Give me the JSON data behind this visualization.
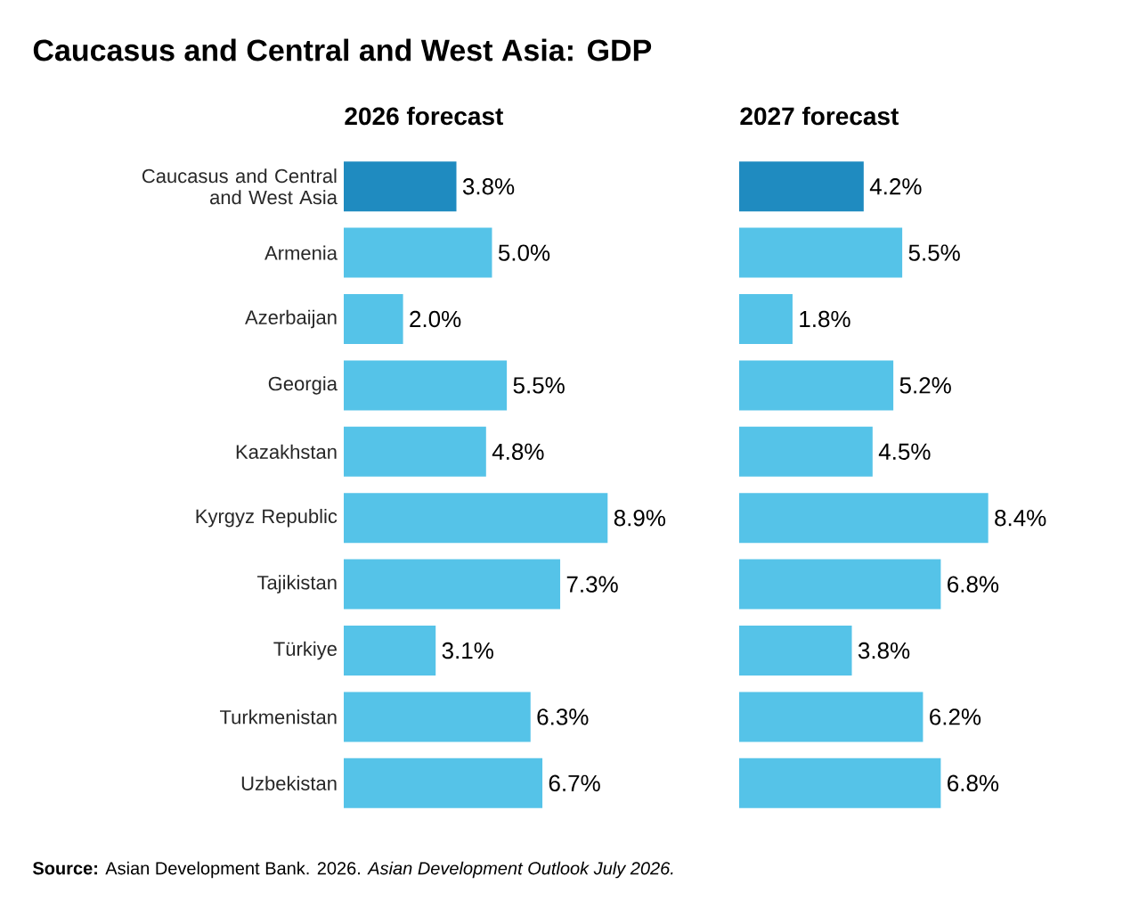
{
  "chart_data": [
    {
      "type": "bar",
      "orientation": "horizontal",
      "title": "Caucasus and Central and West Asia: GDP",
      "subtitle": "2026 forecast",
      "categories": [
        "Caucasus and Central and West Asia",
        "Armenia",
        "Azerbaijan",
        "Georgia",
        "Kazakhstan",
        "Kyrgyz Republic",
        "Tajikistan",
        "Türkiye",
        "Turkmenistan",
        "Uzbekistan"
      ],
      "values": [
        3.8,
        5.0,
        2.0,
        5.5,
        4.8,
        8.9,
        7.3,
        3.1,
        6.3,
        6.7
      ],
      "value_labels": [
        "3.8%",
        "5.0%",
        "2.0%",
        "5.5%",
        "4.8%",
        "8.9%",
        "7.3%",
        "3.1%",
        "6.3%",
        "6.7%"
      ],
      "colors": [
        "#1f8bc0",
        "#55c3e8",
        "#55c3e8",
        "#55c3e8",
        "#55c3e8",
        "#55c3e8",
        "#55c3e8",
        "#55c3e8",
        "#55c3e8",
        "#55c3e8"
      ],
      "annotations": [
        "**Source:** Asian Development Bank. 2026. *Asian Development Outlook July 2026.*"
      ]
    },
    {
      "type": "bar",
      "orientation": "horizontal",
      "subtitle": "2027 forecast",
      "tick_labels": false,
      "categories": [
        null,
        null,
        null,
        null,
        null,
        null,
        null,
        null,
        null,
        null
      ],
      "values": [
        4.2,
        5.5,
        1.8,
        5.2,
        4.5,
        8.4,
        6.8,
        3.8,
        6.2,
        6.8
      ],
      "value_labels": [
        "4.2%",
        "5.5%",
        "1.8%",
        "5.2%",
        "4.5%",
        "8.4%",
        "6.8%",
        "3.8%",
        "6.2%",
        "6.8%"
      ],
      "colors": [
        "#1f8bc0",
        "#55c3e8",
        "#55c3e8",
        "#55c3e8",
        "#55c3e8",
        "#55c3e8",
        "#55c3e8",
        "#55c3e8",
        "#55c3e8",
        "#55c3e8"
      ]
    }
  ]
}
